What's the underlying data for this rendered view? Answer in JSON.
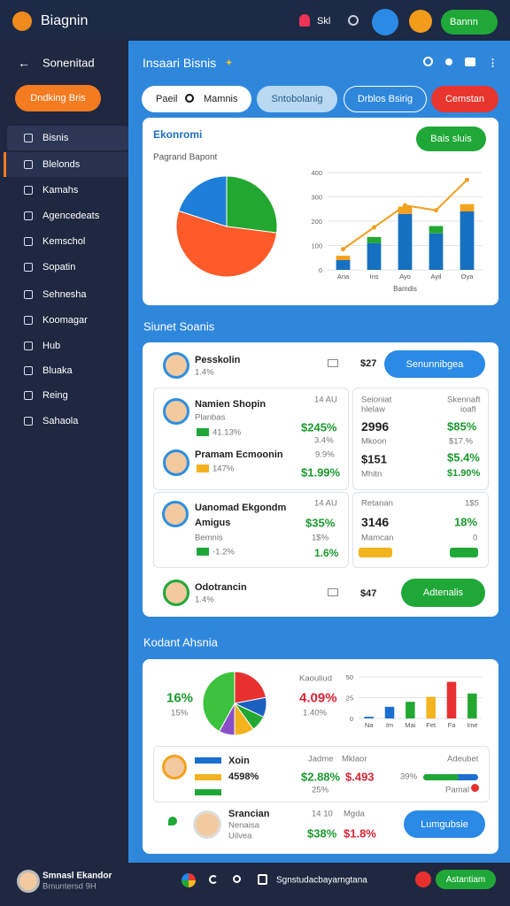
{
  "top_bar": {
    "brand": "Biagnin",
    "user": "Skl",
    "button": "Bannn"
  },
  "sidebar": {
    "title": "Sonenitad",
    "button": "Dndking Bris",
    "menu": [
      "Bisnis",
      "Blelonds",
      "Kamahs",
      "Agencedeats",
      "Kemschol",
      "Sopatin",
      "Sehnesha",
      "Koomagar",
      "Hub",
      "Bluaka",
      "Reing",
      "Sahaola"
    ]
  },
  "header": {
    "title": "Insaari Bisnis",
    "filters": [
      "Paeil",
      "Mamnis",
      "Sntobolanig",
      "Drblos Bsirig",
      "Cemstan"
    ]
  },
  "overview": {
    "title": "Ekonromi",
    "button": "Bais sluis",
    "subtitle": "Pagrand Bapont",
    "pie": {
      "type": "pie",
      "values": [
        27,
        53,
        20
      ],
      "colors": [
        "#22a830",
        "#ff5a2a",
        "#1e7fd8"
      ]
    },
    "bar": {
      "type": "bar",
      "categories": [
        "Ana",
        "Ins",
        "Ayo",
        "Ayil",
        "Oya"
      ],
      "xlabel": "Bamdis",
      "ylim": [
        0,
        400
      ],
      "yticks": [
        0,
        100,
        200,
        300,
        400
      ],
      "series": [
        {
          "color": "#1670c0",
          "values": [
            40,
            110,
            230,
            150,
            240
          ]
        },
        {
          "colors": [
            "#f4a21e",
            "#22a830",
            "#f4a21e",
            "#22a830",
            "#f4a21e"
          ],
          "values": [
            18,
            25,
            30,
            30,
            30
          ]
        }
      ],
      "line": {
        "color": "#f0a020",
        "values": [
          85,
          175,
          265,
          245,
          370
        ]
      }
    }
  },
  "stocks": {
    "title": "Siunet Soanis",
    "row1": {
      "name": "Pesskolin",
      "change": "1.4%",
      "price": "$27",
      "button": "Senunnibgea"
    },
    "left1": {
      "a_name": "Namien Shopin",
      "a_sub": "Planbas",
      "a_pct": "41.13%",
      "a_top": "14 AU",
      "a_value": "$245%",
      "a_low": "3.4%",
      "b_name": "Pramam Ecmoonin",
      "b_pct": "147%",
      "b_top": "9.9%",
      "b_value": "$1.99%"
    },
    "right1": {
      "h1a": "Seioniat",
      "h1b": "hlelaw",
      "h2a": "Skennaft",
      "h2b": "ioafl",
      "v1": "2996",
      "p1": "$85%",
      "l1": "Mkoon",
      "q1": "$17.%",
      "v2": "$151",
      "p2": "$5.4%",
      "l2": "Mhitn",
      "q2": "$1.90%"
    },
    "left2": {
      "name": "Uanomad Ekgondm",
      "sub": "Amigus",
      "sub2": "Bemnis",
      "pct": "-1.2%",
      "top": "14 AU",
      "value": "$35%",
      "mid": "1$%",
      "low": "1.6%"
    },
    "right2": {
      "label": "Retanan",
      "top": "1$5",
      "value": "3146",
      "pct": "18%",
      "label2": "Mamcan",
      "zero": "0"
    },
    "row2": {
      "name": "Odotrancin",
      "change": "1.4%",
      "price": "$47",
      "button": "Adtenalis"
    }
  },
  "analysis": {
    "title": "Kodant Ahsnia",
    "kpi": "16%",
    "kpi_sub": "15%",
    "label": "Kaouliud",
    "value": "4.09%",
    "value_sub": "1.40%",
    "pie": {
      "type": "pie",
      "values": [
        22,
        10,
        8,
        10,
        8,
        42
      ],
      "colors": [
        "#e8302e",
        "#1b5fc0",
        "#22a830",
        "#f4b21e",
        "#8a4fc8",
        "#3cc23c"
      ]
    },
    "bar": {
      "type": "bar",
      "categories": [
        "Na",
        "Im",
        "Mai",
        "Fet",
        "Fa",
        "Ime"
      ],
      "ylim": [
        0,
        50
      ],
      "yticks": [
        0,
        25,
        50
      ],
      "values": [
        2,
        14,
        20,
        26,
        44,
        30
      ],
      "colors": [
        "#1b6fd0",
        "#1b6fd0",
        "#22a830",
        "#f4b21e",
        "#e8302e",
        "#22a830"
      ]
    },
    "row": {
      "name": "Xoin",
      "pct": "4598%",
      "h1": "Jadme",
      "v1": "$2.88%",
      "s1": "25%",
      "h2": "Mklaor",
      "v2": "$.493",
      "h3": "Adeubet",
      "p3": "39%",
      "s3": "Pamal"
    },
    "row2": {
      "name": "Srancian",
      "sub": "Nenaisa",
      "sub2": "Uilvea",
      "top": "14 10",
      "value": "$38%",
      "h2": "Mgda",
      "v2": "$1.8%",
      "button": "Lumgubsie"
    }
  },
  "bottom_bar": {
    "name": "Smnasl Ekandor",
    "sub": "Bmuntersd 9H",
    "text": "Sgnstudacbayarngtana",
    "button": "Astantiam"
  }
}
